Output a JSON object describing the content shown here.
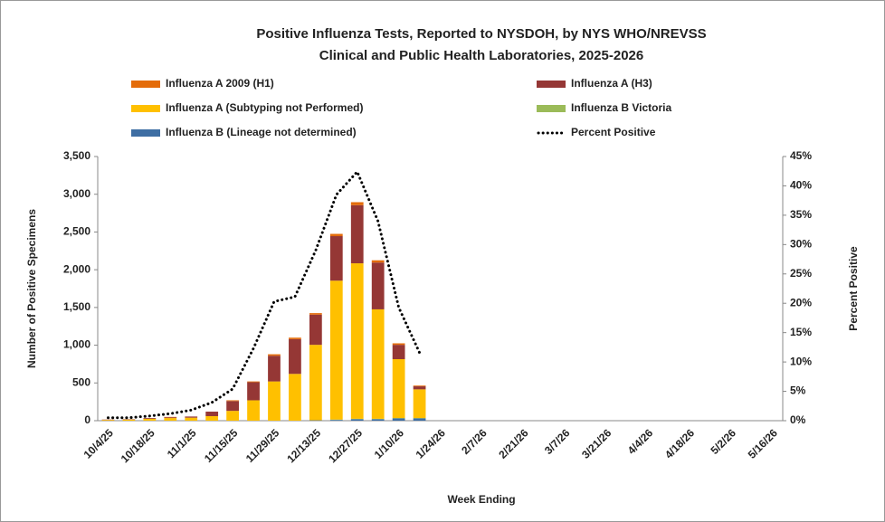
{
  "chart_data": {
    "type": "stacked-bar-line",
    "title": [
      "Positive Influenza Tests, Reported to NYSDOH, by NYS WHO/NREVSS",
      "Clinical and Public Health Laboratories, 2025-2026"
    ],
    "xlabel": "Week Ending",
    "ylabel": "Number of Positive Specimens",
    "y2label": "Percent Positive",
    "categories": [
      "10/4/25",
      null,
      "10/18/25",
      null,
      "11/1/25",
      null,
      "11/15/25",
      null,
      "11/29/25",
      null,
      "12/13/25",
      null,
      "12/27/25",
      null,
      "1/10/26",
      null,
      "1/24/26",
      null,
      "2/7/26",
      null,
      "2/21/26",
      null,
      "3/7/26",
      null,
      "3/21/26",
      null,
      "4/4/26",
      null,
      "4/18/26",
      null,
      "5/2/26",
      null,
      "5/16/26"
    ],
    "series": [
      {
        "name": "Influenza B (Lineage not determined)",
        "color": "#3e6ea3",
        "kind": "bar",
        "values": [
          0,
          0,
          0,
          0,
          0,
          0,
          0,
          0,
          0,
          0,
          5,
          10,
          20,
          20,
          30,
          30,
          null,
          null,
          null,
          null,
          null,
          null,
          null,
          null,
          null,
          null,
          null,
          null,
          null,
          null,
          null,
          null,
          null
        ]
      },
      {
        "name": "Influenza B Victoria",
        "color": "#9bbb59",
        "kind": "bar",
        "values": [
          0,
          0,
          0,
          0,
          0,
          0,
          0,
          0,
          0,
          0,
          0,
          5,
          5,
          5,
          5,
          5,
          null,
          null,
          null,
          null,
          null,
          null,
          null,
          null,
          null,
          null,
          null,
          null,
          null,
          null,
          null,
          null,
          null
        ]
      },
      {
        "name": "Influenza A (Subtyping not Performed)",
        "color": "#ffc000",
        "kind": "bar",
        "values": [
          10,
          15,
          25,
          35,
          40,
          60,
          130,
          270,
          520,
          620,
          1000,
          1840,
          2060,
          1450,
          780,
          380,
          null,
          null,
          null,
          null,
          null,
          null,
          null,
          null,
          null,
          null,
          null,
          null,
          null,
          null,
          null,
          null,
          null
        ]
      },
      {
        "name": "Influenza A (H3)",
        "color": "#953735",
        "kind": "bar",
        "values": [
          5,
          5,
          10,
          10,
          15,
          60,
          130,
          240,
          340,
          460,
          400,
          590,
          770,
          620,
          190,
          40,
          null,
          null,
          null,
          null,
          null,
          null,
          null,
          null,
          null,
          null,
          null,
          null,
          null,
          null,
          null,
          null,
          null
        ]
      },
      {
        "name": "Influenza A 2009 (H1)",
        "color": "#e46c0a",
        "kind": "bar",
        "values": [
          0,
          0,
          0,
          5,
          0,
          0,
          10,
          10,
          20,
          20,
          20,
          30,
          40,
          30,
          20,
          10,
          null,
          null,
          null,
          null,
          null,
          null,
          null,
          null,
          null,
          null,
          null,
          null,
          null,
          null,
          null,
          null,
          null
        ]
      },
      {
        "name": "Percent Positive",
        "color": "#000000",
        "kind": "line",
        "axis": "y2",
        "values": [
          0.5,
          0.5,
          0.8,
          1.2,
          1.8,
          3.1,
          5.4,
          12.3,
          20.3,
          21.1,
          29,
          38.5,
          42.4,
          34,
          19.3,
          11.6,
          null,
          null,
          null,
          null,
          null,
          null,
          null,
          null,
          null,
          null,
          null,
          null,
          null,
          null,
          null,
          null,
          null
        ]
      }
    ],
    "legend_order": [
      4,
      3,
      2,
      1,
      0,
      5
    ],
    "ylim": [
      0,
      3500
    ],
    "yticks": [
      0,
      500,
      {
        "value": 1000,
        "label": "1,000"
      },
      {
        "value": 1500,
        "label": "1,500"
      },
      {
        "value": 2000,
        "label": "2,000"
      },
      {
        "value": 2500,
        "label": "2,500"
      },
      {
        "value": 3000,
        "label": "3,000"
      },
      {
        "value": 3500,
        "label": "3,500"
      }
    ],
    "y2lim": [
      0,
      45
    ],
    "y2ticks": [
      {
        "value": 0,
        "label": "0%"
      },
      {
        "value": 5,
        "label": "5%"
      },
      {
        "value": 10,
        "label": "10%"
      },
      {
        "value": 15,
        "label": "15%"
      },
      {
        "value": 20,
        "label": "20%"
      },
      {
        "value": 25,
        "label": "25%"
      },
      {
        "value": 30,
        "label": "30%"
      },
      {
        "value": 35,
        "label": "35%"
      },
      {
        "value": 40,
        "label": "40%"
      },
      {
        "value": 45,
        "label": "45%"
      }
    ],
    "grid": false
  }
}
